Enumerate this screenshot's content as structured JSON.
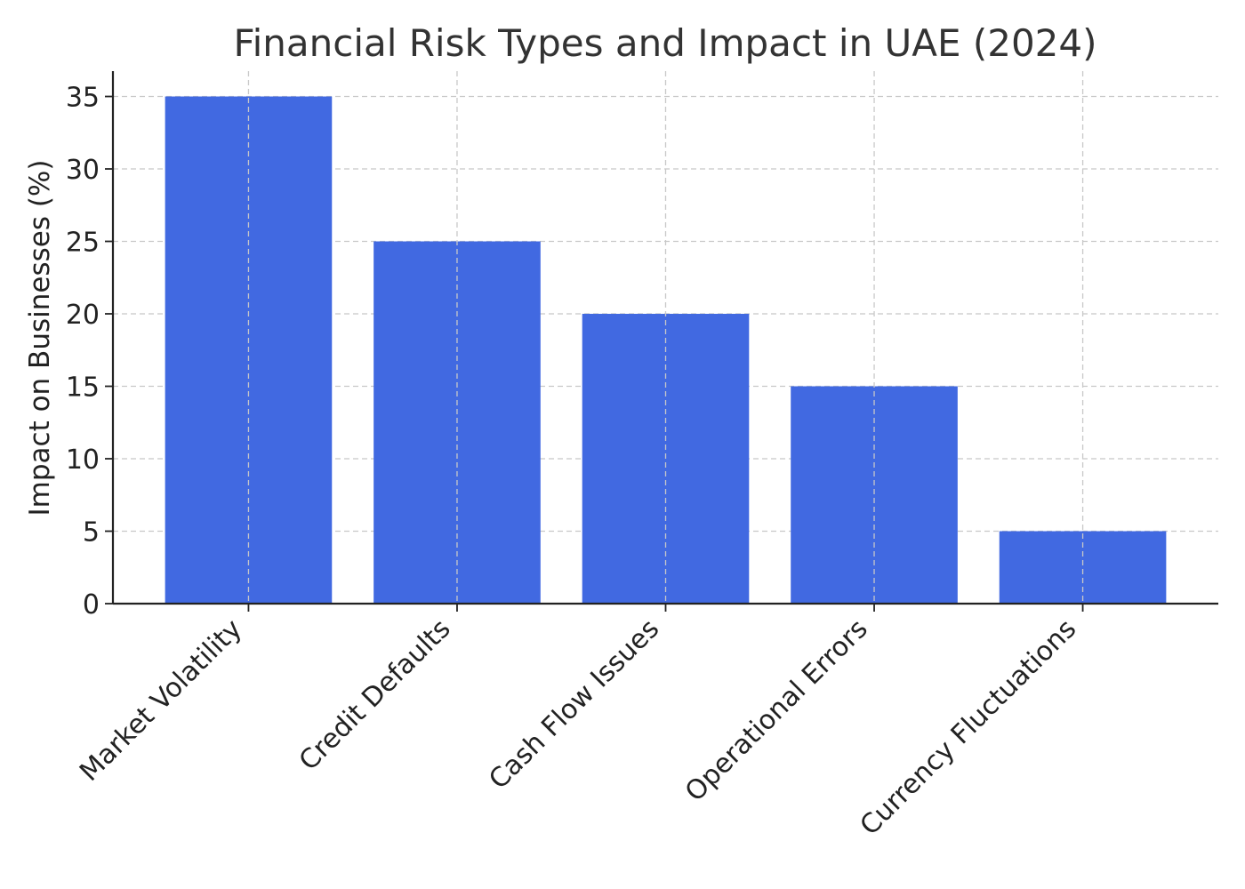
{
  "chart_data": {
    "type": "bar",
    "title": "Financial Risk Types and Impact in UAE (2024)",
    "xlabel": "",
    "ylabel": "Impact on Businesses (%)",
    "categories": [
      "Market Volatility",
      "Credit Defaults",
      "Cash Flow Issues",
      "Operational Errors",
      "Currency Fluctuations"
    ],
    "values": [
      35,
      25,
      20,
      15,
      5
    ],
    "ylim": [
      0,
      36.75
    ],
    "yticks": [
      0,
      5,
      10,
      15,
      20,
      25,
      30,
      35
    ],
    "bar_color": "#4169e1",
    "grid": true,
    "legend": "none"
  }
}
